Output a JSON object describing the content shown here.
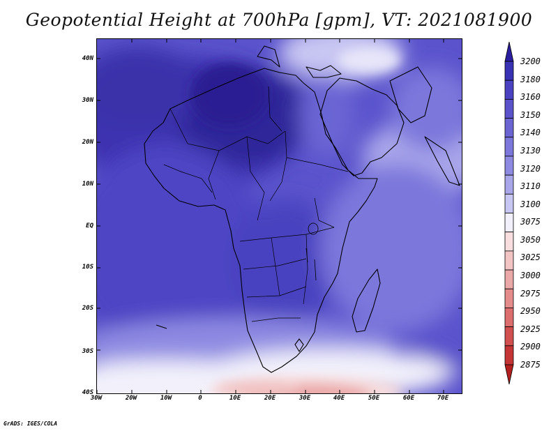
{
  "title": "Geopotential Height at 700hPa [gpm], VT: 2021081900",
  "footer": "GrADS: IGES/COLA",
  "lat_labels": [
    "40N",
    "30N",
    "20N",
    "10N",
    "EQ",
    "10S",
    "20S",
    "30S",
    "40S"
  ],
  "lon_labels": [
    "30W",
    "20W",
    "10W",
    "0",
    "10E",
    "20E",
    "30E",
    "40E",
    "50E",
    "60E",
    "70E"
  ],
  "colorbar": {
    "levels": [
      "3200",
      "3180",
      "3160",
      "3150",
      "3140",
      "3130",
      "3120",
      "3110",
      "3100",
      "3075",
      "3050",
      "3025",
      "3000",
      "2975",
      "2950",
      "2925",
      "2900",
      "2875"
    ],
    "colors": [
      "#2b1e9e",
      "#3a32b4",
      "#4a42c2",
      "#5a53cc",
      "#6b65d4",
      "#7c77db",
      "#8e8ae2",
      "#a9a6ea",
      "#c8c6f2",
      "#f2f1fb",
      "#f8dede",
      "#f2c4c4",
      "#eba8a8",
      "#e48c8c",
      "#dc6e6e",
      "#d24f4f",
      "#c63535",
      "#b31f1f"
    ]
  }
}
